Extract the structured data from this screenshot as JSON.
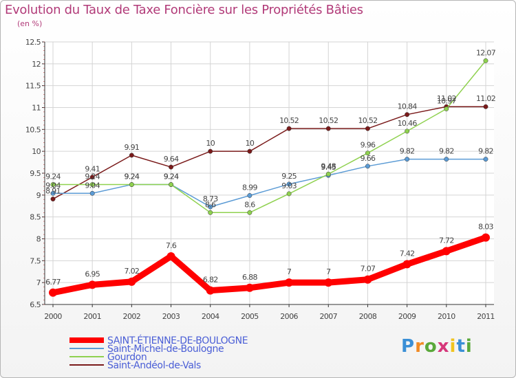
{
  "header": {
    "title": "Evolution du Taux de Taxe Foncière sur les Propriétés Bâties",
    "subtitle": "(en %)"
  },
  "logo": {
    "text": "Proxiti",
    "letter_colors": [
      "#3a8fd6",
      "#f08a24",
      "#5aa83a",
      "#d6377a",
      "#f0c420",
      "#3a8fd6",
      "#5aa83a"
    ]
  },
  "chart_data": {
    "type": "line",
    "title": "Evolution du Taux de Taxe Foncière sur les Propriétés Bâties",
    "ylabel": "(en %)",
    "xlabel": "",
    "x": [
      "2000",
      "2001",
      "2002",
      "2003",
      "2004",
      "2005",
      "2006",
      "2007",
      "2008",
      "2009",
      "2010",
      "2011"
    ],
    "ylim": [
      6.5,
      12.5
    ],
    "yticks": [
      "6.5",
      "7",
      "7.5",
      "8",
      "8.5",
      "9",
      "9.5",
      "10",
      "10.5",
      "11",
      "11.5",
      "12",
      "12.5"
    ],
    "grid": true,
    "legend_position": "bottom-left",
    "series": [
      {
        "name": "Saint-Andéol-de-Vals",
        "color": "#7a1a1a",
        "values": [
          8.91,
          9.41,
          9.91,
          9.64,
          10,
          10,
          10.52,
          10.52,
          10.52,
          10.84,
          11.02,
          11.02
        ],
        "labels": [
          "8.91",
          "9.41",
          "9.91",
          "9.64",
          "10",
          "10",
          "10.52",
          "10.52",
          "10.52",
          "10.84",
          "11.02",
          "11.02"
        ]
      },
      {
        "name": "Saint-Michel-de-Boulogne",
        "color": "#5b9bd5",
        "values": [
          9.04,
          9.04,
          9.24,
          9.24,
          8.73,
          8.99,
          9.25,
          9.45,
          9.66,
          9.82,
          9.82,
          9.82
        ],
        "labels": [
          "9.04",
          "9.04",
          "9.24",
          "9.24",
          "8.73",
          "8.99",
          "9.25",
          "9.45",
          "9.66",
          "9.82",
          "9.82",
          "9.82"
        ]
      },
      {
        "name": "Gourdon",
        "color": "#8fd14f",
        "values": [
          9.24,
          9.24,
          9.24,
          9.24,
          8.6,
          8.6,
          9.03,
          9.48,
          9.96,
          10.46,
          10.97,
          12.07
        ],
        "labels": [
          "9.24",
          "9.24",
          "9.24",
          "9.24",
          "8.6",
          "8.6",
          "9.03",
          "9.48",
          "9.96",
          "10.46",
          "10.97",
          "12.07"
        ]
      },
      {
        "name": "SAINT-ÉTIENNE-DE-BOULOGNE",
        "color": "#ff0000",
        "values": [
          6.77,
          6.95,
          7.02,
          7.6,
          6.82,
          6.88,
          7,
          7,
          7.07,
          7.42,
          7.72,
          8.03
        ],
        "labels": [
          "6.77",
          "6.95",
          "7.02",
          "7.6",
          "6.82",
          "6.88",
          "7",
          "7",
          "7.07",
          "7.42",
          "7.72",
          "8.03"
        ]
      }
    ],
    "legend": [
      {
        "name": "SAINT-ÉTIENNE-DE-BOULOGNE",
        "color": "#ff0000",
        "emphasis": true
      },
      {
        "name": "Saint-Michel-de-Boulogne",
        "color": "#5b9bd5",
        "emphasis": false
      },
      {
        "name": "Gourdon",
        "color": "#8fd14f",
        "emphasis": false
      },
      {
        "name": "Saint-Andéol-de-Vals",
        "color": "#7a1a1a",
        "emphasis": false
      }
    ]
  }
}
